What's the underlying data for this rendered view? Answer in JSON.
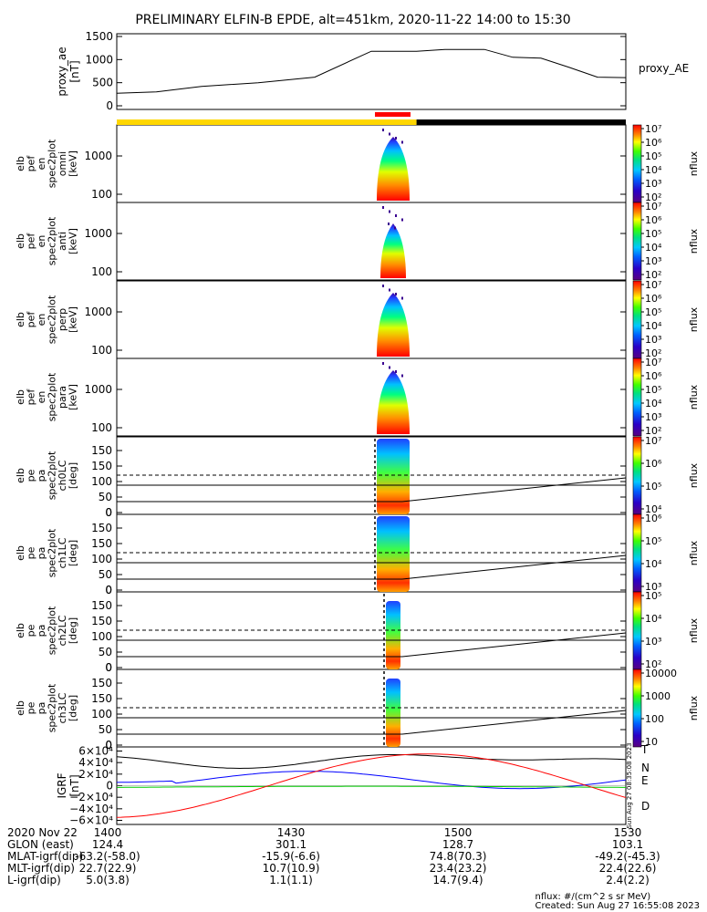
{
  "chart_data": {
    "type": "spectrogram-stack",
    "title": "PRELIMINARY ELFIN-B EPDE, alt=451km, 2020-11-22 14:00 to 15:30",
    "time_ticks": [
      "1400",
      "1430",
      "1500",
      "1530"
    ],
    "panels": [
      {
        "id": "proxy_ae",
        "ylabel": [
          "proxy_ae",
          "[nT]"
        ],
        "legend": "proxy_AE",
        "yticks": [
          "0",
          "500",
          "1000",
          "1500"
        ],
        "ylim": [
          0,
          1500
        ],
        "x_minutes": [
          0,
          7,
          15,
          25,
          35,
          45,
          53,
          58,
          65,
          70,
          75,
          80,
          85,
          90
        ],
        "values": [
          270,
          300,
          420,
          500,
          620,
          1180,
          1180,
          1220,
          1220,
          1050,
          1030,
          830,
          620,
          610
        ],
        "values_b": [],
        "note": "piecewise line"
      }
    ],
    "spec_panels": [
      {
        "ylabel": [
          "elb",
          "pef",
          "en",
          "spec2plot",
          "omni",
          "[keV]"
        ],
        "yticks": [
          "100",
          "1000"
        ],
        "cbar_ticks": [
          "10^2",
          "10^3",
          "10^4",
          "10^5",
          "10^6",
          "10^7"
        ],
        "cbar_label": "nflux"
      },
      {
        "ylabel": [
          "elb",
          "pef",
          "en",
          "spec2plot",
          "anti",
          "[keV]"
        ],
        "yticks": [
          "100",
          "1000"
        ],
        "cbar_ticks": [
          "10^2",
          "10^3",
          "10^4",
          "10^5",
          "10^6",
          "10^7"
        ],
        "cbar_label": "nflux"
      },
      {
        "ylabel": [
          "elb",
          "pef",
          "en",
          "spec2plot",
          "perp",
          "[keV]"
        ],
        "yticks": [
          "100",
          "1000"
        ],
        "cbar_ticks": [
          "10^2",
          "10^3",
          "10^4",
          "10^5",
          "10^6",
          "10^7"
        ],
        "cbar_label": "nflux"
      },
      {
        "ylabel": [
          "elb",
          "pef",
          "en",
          "spec2plot",
          "para",
          "[keV]"
        ],
        "yticks": [
          "100",
          "1000"
        ],
        "cbar_ticks": [
          "10^2",
          "10^3",
          "10^4",
          "10^5",
          "10^6",
          "10^7"
        ],
        "cbar_label": "nflux"
      },
      {
        "ylabel": [
          "elb",
          "pe",
          "pa",
          "spec2plot",
          "ch0LC",
          "[deg]"
        ],
        "yticks": [
          "0",
          "50",
          "100",
          "150"
        ],
        "cbar_ticks": [
          "10^4",
          "10^5",
          "10^6",
          "10^7"
        ],
        "cbar_label": "nflux"
      },
      {
        "ylabel": [
          "elb",
          "pe",
          "pa",
          "spec2plot",
          "ch1LC",
          "[deg]"
        ],
        "yticks": [
          "0",
          "50",
          "100",
          "150"
        ],
        "cbar_ticks": [
          "10^3",
          "10^4",
          "10^5",
          "10^6"
        ],
        "cbar_label": "nflux"
      },
      {
        "ylabel": [
          "elb",
          "pe",
          "pa",
          "spec2plot",
          "ch2LC",
          "[deg]"
        ],
        "yticks": [
          "0",
          "50",
          "100",
          "150"
        ],
        "cbar_ticks": [
          "10^2",
          "10^3",
          "10^4",
          "10^5"
        ],
        "cbar_label": "nflux"
      },
      {
        "ylabel": [
          "elb",
          "pe",
          "pa",
          "spec2plot",
          "ch3LC",
          "[deg]"
        ],
        "yticks": [
          "0",
          "50",
          "100",
          "150"
        ],
        "cbar_ticks": [
          "10",
          "100",
          "1000",
          "10000"
        ],
        "cbar_label": "nflux"
      }
    ],
    "igrf": {
      "ylabel": [
        "IGRF",
        "[nT]"
      ],
      "yticks": [
        "−6×10⁴",
        "−4×10⁴",
        "−2×10⁴",
        "0",
        "2×10⁴",
        "4×10⁴",
        "6×10⁴"
      ],
      "ylim": [
        -60000,
        60000
      ],
      "series": [
        {
          "name": "T",
          "color": "#000000"
        },
        {
          "name": "N",
          "color": "#0000ff"
        },
        {
          "name": "E",
          "color": "#00cc00"
        },
        {
          "name": "D",
          "color": "#ff0000"
        }
      ],
      "side_stamp": "Sun Aug 27 08:35:08 2023"
    },
    "footer": {
      "rows": [
        {
          "label": "2020 Nov 22",
          "values": [
            "1400",
            "1430",
            "1500",
            "1530"
          ]
        },
        {
          "label": "GLON (east)",
          "values": [
            "124.4",
            "301.1",
            "128.7",
            "103.1"
          ]
        },
        {
          "label": "MLAT-igrf(dip)",
          "values": [
            "-63.2(-58.0)",
            "-15.9(-6.6)",
            "74.8(70.3)",
            "-49.2(-45.3)"
          ]
        },
        {
          "label": "MLT-igrf(dip)",
          "values": [
            "22.7(22.9)",
            "10.7(10.9)",
            "23.4(23.2)",
            "22.4(22.6)"
          ]
        },
        {
          "label": "L-igrf(dip)",
          "values": [
            "5.0(3.8)",
            "1.1(1.1)",
            "14.7(9.4)",
            "2.4(2.2)"
          ]
        }
      ],
      "units": "nflux: #/(cm^2 s sr MeV)",
      "created": "Created: Sun Aug 27 16:55:08 2023"
    }
  },
  "colors": {
    "yellow_bar": "#ffd700",
    "red_bar": "#ff0000",
    "black_bar": "#000000"
  }
}
